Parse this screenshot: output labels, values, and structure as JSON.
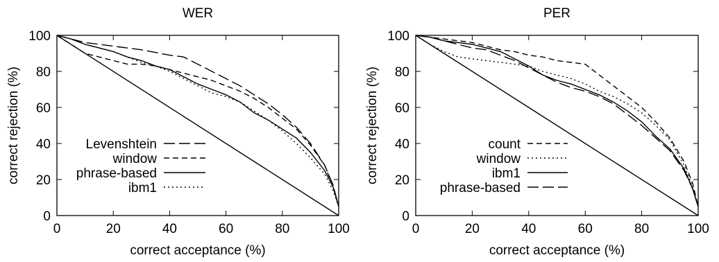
{
  "chart_data": [
    {
      "type": "line",
      "title": "WER",
      "xlabel": "correct acceptance (%)",
      "ylabel": "correct rejection (%)",
      "xlim": [
        0,
        100
      ],
      "ylim": [
        0,
        100
      ],
      "xticks": [
        "0",
        "20",
        "40",
        "60",
        "80",
        "100"
      ],
      "yticks": [
        "0",
        "20",
        "40",
        "60",
        "80",
        "100"
      ],
      "grid": false,
      "legend_position": "bottom-left",
      "series": [
        {
          "name": "Levenshtein",
          "dash": "long-dash",
          "x": [
            0,
            10,
            20,
            30,
            40,
            45,
            50,
            55,
            60,
            65,
            70,
            75,
            80,
            85,
            90,
            95,
            98,
            100
          ],
          "y": [
            100,
            96,
            94,
            92,
            89,
            88,
            84,
            80,
            76,
            72,
            67,
            62,
            56,
            49,
            40,
            28,
            17,
            5
          ]
        },
        {
          "name": "window",
          "dash": "dash",
          "x": [
            0,
            5,
            10,
            15,
            20,
            25,
            30,
            35,
            40,
            45,
            50,
            55,
            60,
            65,
            70,
            75,
            80,
            85,
            90,
            95,
            98,
            100
          ],
          "y": [
            100,
            95,
            90,
            88,
            86,
            84,
            84,
            83,
            81,
            79,
            77,
            75,
            72,
            69,
            65,
            60,
            54,
            48,
            39,
            28,
            16,
            5
          ]
        },
        {
          "name": "phrase-based",
          "dash": "solid",
          "x": [
            0,
            5,
            10,
            15,
            20,
            25,
            30,
            35,
            40,
            45,
            50,
            55,
            60,
            65,
            70,
            75,
            80,
            85,
            90,
            95,
            98,
            100
          ],
          "y": [
            100,
            98,
            95,
            93,
            91,
            88,
            86,
            83,
            81,
            77,
            73,
            70,
            67,
            63,
            57,
            53,
            48,
            43,
            35,
            25,
            16,
            5
          ]
        },
        {
          "name": "ibm1",
          "dash": "dot",
          "x": [
            0,
            5,
            10,
            15,
            20,
            25,
            30,
            35,
            40,
            45,
            50,
            55,
            60,
            65,
            70,
            75,
            80,
            85,
            90,
            95,
            98,
            100
          ],
          "y": [
            100,
            98,
            95,
            93,
            91,
            88,
            85,
            83,
            80,
            76,
            72,
            68,
            66,
            63,
            58,
            53,
            47,
            40,
            32,
            23,
            14,
            5
          ]
        },
        {
          "name": "",
          "dash": "solid",
          "x": [
            0,
            100
          ],
          "y": [
            100,
            0
          ]
        }
      ]
    },
    {
      "type": "line",
      "title": "PER",
      "xlabel": "correct acceptance (%)",
      "ylabel": "correct rejection (%)",
      "xlim": [
        0,
        100
      ],
      "ylim": [
        0,
        100
      ],
      "xticks": [
        "0",
        "20",
        "40",
        "60",
        "80",
        "100"
      ],
      "yticks": [
        "0",
        "20",
        "40",
        "60",
        "80",
        "100"
      ],
      "grid": false,
      "legend_position": "bottom-left",
      "series": [
        {
          "name": "count",
          "dash": "dash",
          "x": [
            0,
            5,
            10,
            15,
            20,
            25,
            30,
            35,
            40,
            45,
            50,
            55,
            60,
            65,
            70,
            75,
            80,
            85,
            90,
            95,
            98,
            100
          ],
          "y": [
            100,
            99,
            98,
            97,
            96,
            94,
            92,
            91,
            89,
            88,
            86,
            85,
            84,
            78,
            72,
            66,
            60,
            52,
            43,
            30,
            18,
            5
          ]
        },
        {
          "name": "window",
          "dash": "dot",
          "x": [
            0,
            5,
            10,
            15,
            20,
            25,
            30,
            35,
            40,
            45,
            50,
            55,
            60,
            65,
            70,
            75,
            80,
            85,
            90,
            95,
            98,
            100
          ],
          "y": [
            100,
            95,
            91,
            88,
            87,
            86,
            85,
            84,
            83,
            80,
            78,
            76,
            73,
            69,
            66,
            62,
            57,
            50,
            42,
            28,
            16,
            5
          ]
        },
        {
          "name": "ibm1",
          "dash": "solid",
          "x": [
            0,
            5,
            10,
            15,
            20,
            25,
            30,
            35,
            40,
            45,
            50,
            55,
            60,
            65,
            70,
            75,
            80,
            85,
            90,
            95,
            98,
            100
          ],
          "y": [
            100,
            99,
            97,
            96,
            95,
            93,
            91,
            87,
            83,
            78,
            75,
            73,
            70,
            67,
            63,
            58,
            52,
            44,
            37,
            26,
            15,
            5
          ]
        },
        {
          "name": "phrase-based",
          "dash": "long-dash",
          "x": [
            0,
            5,
            10,
            15,
            20,
            25,
            30,
            35,
            40,
            45,
            50,
            55,
            60,
            65,
            70,
            75,
            80,
            85,
            90,
            95,
            98,
            100
          ],
          "y": [
            100,
            99,
            97,
            95,
            93,
            92,
            89,
            86,
            82,
            78,
            74,
            71,
            69,
            66,
            62,
            56,
            50,
            43,
            36,
            25,
            15,
            5
          ]
        },
        {
          "name": "",
          "dash": "solid",
          "x": [
            0,
            100
          ],
          "y": [
            100,
            0
          ]
        }
      ]
    }
  ]
}
